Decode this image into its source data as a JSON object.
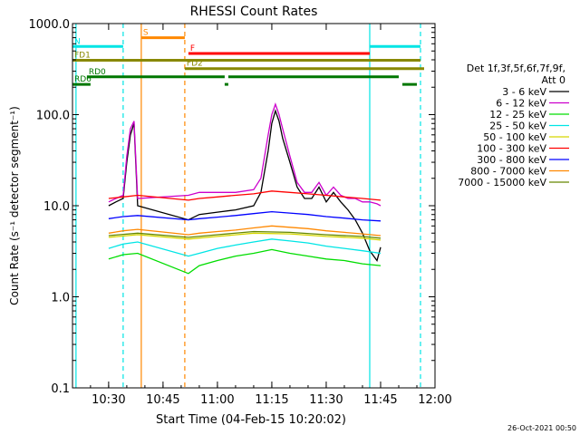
{
  "chart_data": {
    "type": "line",
    "title": "RHESSI Count Rates",
    "xlabel": "Start Time (04-Feb-15 10:20:02)",
    "ylabel": "Count Rate (s⁻¹ detector segment⁻¹)",
    "yscale": "log",
    "ylim": [
      0.1,
      1000
    ],
    "xlim": [
      "10:20:02",
      "12:00"
    ],
    "x_ticks": [
      "10:30",
      "10:45",
      "11:00",
      "11:15",
      "11:30",
      "11:45",
      "12:00"
    ],
    "y_ticks": [
      "0.1",
      "1.0",
      "10.0",
      "100.0",
      "1000.0"
    ],
    "timestamp": "26-Oct-2021 00:50",
    "detectors": "Det 1f,3f,5f,6f,7f,9f,",
    "attenuator": "Att 0",
    "series": [
      {
        "name": "3 - 6 keV",
        "color": "#000000",
        "x": [
          "10:30",
          "10:32",
          "10:34",
          "10:35",
          "10:36",
          "10:37",
          "10:38",
          "10:52",
          "10:55",
          "11:00",
          "11:05",
          "11:10",
          "11:12",
          "11:14",
          "11:15",
          "11:16",
          "11:17",
          "11:18",
          "11:20",
          "11:22",
          "11:24",
          "11:26",
          "11:28",
          "11:30",
          "11:32",
          "11:34",
          "11:36",
          "11:38",
          "11:40",
          "11:42",
          "11:44",
          "11:45"
        ],
        "y": [
          10,
          11,
          12,
          30,
          60,
          80,
          10,
          7,
          8,
          8.5,
          9,
          10,
          14,
          40,
          80,
          110,
          85,
          55,
          30,
          16,
          12,
          12,
          16,
          11,
          14,
          11,
          9,
          7,
          5,
          3.2,
          2.5,
          3.5
        ]
      },
      {
        "name": "6 - 12 keV",
        "color": "#cc00cc",
        "x": [
          "10:30",
          "10:32",
          "10:34",
          "10:35",
          "10:36",
          "10:37",
          "10:38",
          "10:52",
          "10:55",
          "11:00",
          "11:05",
          "11:10",
          "11:12",
          "11:14",
          "11:15",
          "11:16",
          "11:17",
          "11:18",
          "11:20",
          "11:22",
          "11:24",
          "11:26",
          "11:28",
          "11:30",
          "11:32",
          "11:34",
          "11:36",
          "11:38",
          "11:40",
          "11:42",
          "11:44",
          "11:45"
        ],
        "y": [
          11,
          12,
          13,
          35,
          70,
          85,
          12,
          13,
          14,
          14,
          14,
          15,
          20,
          60,
          100,
          130,
          100,
          70,
          35,
          18,
          14,
          14,
          18,
          13,
          16,
          13,
          12,
          12,
          11,
          11,
          10.5,
          10
        ]
      },
      {
        "name": "12 - 25 keV",
        "color": "#00dd00",
        "x": [
          "10:30",
          "10:34",
          "10:38",
          "10:52",
          "10:55",
          "11:00",
          "11:05",
          "11:10",
          "11:15",
          "11:20",
          "11:25",
          "11:30",
          "11:35",
          "11:40",
          "11:45"
        ],
        "y": [
          2.6,
          2.9,
          3.0,
          1.8,
          2.2,
          2.5,
          2.8,
          3.0,
          3.3,
          3.0,
          2.8,
          2.6,
          2.5,
          2.3,
          2.2
        ]
      },
      {
        "name": "25 - 50 keV",
        "color": "#00e5e5",
        "x": [
          "10:30",
          "10:34",
          "10:38",
          "10:52",
          "10:55",
          "11:00",
          "11:05",
          "11:10",
          "11:15",
          "11:20",
          "11:25",
          "11:30",
          "11:35",
          "11:40",
          "11:45"
        ],
        "y": [
          3.4,
          3.8,
          4.0,
          2.8,
          3.0,
          3.4,
          3.7,
          4.0,
          4.3,
          4.1,
          3.9,
          3.6,
          3.4,
          3.2,
          3.0
        ]
      },
      {
        "name": "50 - 100 keV",
        "color": "#d6d600",
        "x": [
          "10:30",
          "10:38",
          "10:52",
          "11:00",
          "11:10",
          "11:20",
          "11:30",
          "11:40",
          "11:45"
        ],
        "y": [
          4.5,
          4.8,
          4.3,
          4.6,
          5.0,
          4.9,
          4.6,
          4.4,
          4.2
        ]
      },
      {
        "name": "100 - 300 keV",
        "color": "#ff0000",
        "x": [
          "10:30",
          "10:34",
          "10:38",
          "10:52",
          "10:55",
          "11:00",
          "11:05",
          "11:10",
          "11:15",
          "11:20",
          "11:25",
          "11:30",
          "11:35",
          "11:40",
          "11:45"
        ],
        "y": [
          12,
          12.5,
          13,
          11.5,
          12,
          12.5,
          13,
          13.5,
          14.5,
          14,
          13.5,
          13,
          12.5,
          12,
          11.5
        ]
      },
      {
        "name": "300 - 800 keV",
        "color": "#0000ff",
        "x": [
          "10:30",
          "10:34",
          "10:38",
          "10:52",
          "10:55",
          "11:00",
          "11:05",
          "11:10",
          "11:15",
          "11:20",
          "11:25",
          "11:30",
          "11:35",
          "11:40",
          "11:45"
        ],
        "y": [
          7.2,
          7.6,
          7.8,
          7.0,
          7.2,
          7.5,
          7.8,
          8.2,
          8.6,
          8.3,
          8.0,
          7.6,
          7.3,
          7.0,
          6.8
        ]
      },
      {
        "name": "800 - 7000 keV",
        "color": "#ff8800",
        "x": [
          "10:30",
          "10:34",
          "10:38",
          "10:52",
          "10:55",
          "11:00",
          "11:05",
          "11:10",
          "11:15",
          "11:20",
          "11:25",
          "11:30",
          "11:35",
          "11:40",
          "11:45"
        ],
        "y": [
          5.0,
          5.3,
          5.5,
          4.8,
          5.0,
          5.2,
          5.4,
          5.7,
          6.0,
          5.8,
          5.6,
          5.3,
          5.1,
          4.9,
          4.7
        ]
      },
      {
        "name": "7000 - 15000 keV",
        "color": "#668800",
        "x": [
          "10:30",
          "10:38",
          "10:52",
          "11:00",
          "11:10",
          "11:20",
          "11:30",
          "11:40",
          "11:45"
        ],
        "y": [
          4.7,
          5.0,
          4.5,
          4.8,
          5.2,
          5.1,
          4.8,
          4.6,
          4.4
        ]
      }
    ],
    "vertical_markers": [
      {
        "time": "10:21",
        "color": "#00e5e5",
        "style": "solid"
      },
      {
        "time": "10:34",
        "color": "#00e5e5",
        "style": "dashed"
      },
      {
        "time": "10:39",
        "color": "#ff8800",
        "style": "solid"
      },
      {
        "time": "10:51",
        "color": "#ff8800",
        "style": "dashed"
      },
      {
        "time": "11:42",
        "color": "#00e5e5",
        "style": "solid"
      },
      {
        "time": "11:56",
        "color": "#00e5e5",
        "style": "dashed"
      }
    ],
    "flag_bars": [
      {
        "label": "S",
        "color": "#ff8800",
        "label_color": "#ff8800",
        "y": 700,
        "segments": [
          [
            "10:39",
            "10:51"
          ]
        ]
      },
      {
        "label": "N",
        "color": "#00e5e5",
        "label_color": "#00e5e5",
        "y": 560,
        "segments": [
          [
            "10:20:02",
            "10:34"
          ],
          [
            "11:42",
            "11:56"
          ]
        ]
      },
      {
        "label": "F",
        "color": "#ff0000",
        "label_color": "#ff0000",
        "y": 470,
        "segments": [
          [
            "10:52",
            "11:42"
          ]
        ]
      },
      {
        "label": "FD1",
        "color": "#888800",
        "label_color": "#888800",
        "y": 395,
        "segments": [
          [
            "10:20:02",
            "11:56"
          ]
        ]
      },
      {
        "label": "FD2",
        "color": "#888800",
        "label_color": "#888800",
        "y": 320,
        "segments": [
          [
            "10:51",
            "11:57"
          ]
        ]
      },
      {
        "label": "RD0",
        "color": "#007700",
        "label_color": "#007700",
        "y": 260,
        "segments": [
          [
            "10:24",
            "11:02"
          ],
          [
            "11:03",
            "11:50"
          ]
        ]
      },
      {
        "label": "RD6",
        "color": "#007700",
        "label_color": "#007700",
        "y": 215,
        "segments": [
          [
            "10:20:02",
            "10:25"
          ],
          [
            "11:02",
            "11:03"
          ],
          [
            "11:51",
            "11:55"
          ]
        ]
      }
    ]
  }
}
